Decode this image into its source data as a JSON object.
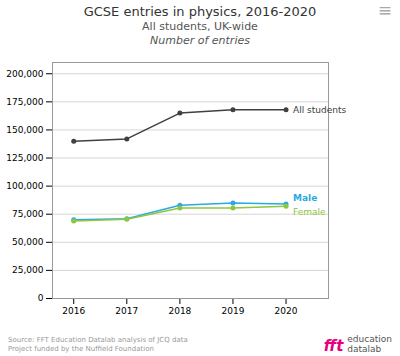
{
  "chart_data": {
    "type": "line",
    "title": "GCSE entries in physics, 2016-2020",
    "subtitle": [
      "All students, UK-wide",
      "Number of entries"
    ],
    "x": [
      2016,
      2017,
      2018,
      2019,
      2020
    ],
    "series": [
      {
        "name": "All students",
        "color": "#404040",
        "values": [
          140000,
          142000,
          165000,
          168000,
          168000
        ]
      },
      {
        "name": "Male",
        "color": "#29ABE2",
        "values": [
          70000,
          71000,
          83000,
          85000,
          84000
        ]
      },
      {
        "name": "Female",
        "color": "#8DC63F",
        "values": [
          69000,
          70500,
          80500,
          80500,
          82000
        ]
      }
    ],
    "marker": "circle",
    "xlim": [
      2015.6,
      2020.8
    ],
    "xticks": [
      2016,
      2017,
      2018,
      2019,
      2020
    ],
    "ylim": [
      0,
      210000
    ],
    "yticks": [
      0,
      {
        "value": 25000,
        "label": "25,000"
      },
      {
        "value": 50000,
        "label": "50,000"
      },
      {
        "value": 75000,
        "label": "75,000"
      },
      {
        "value": 100000,
        "label": "100,000"
      },
      {
        "value": 125000,
        "label": "125,000"
      },
      {
        "value": 150000,
        "label": "150,000"
      },
      {
        "value": 175000,
        "label": "175,000"
      },
      {
        "value": 200000,
        "label": "200,000"
      }
    ],
    "grid": true,
    "annotations": [
      "≡",
      "Source: FFT Education Datalab analysis of JCQ data",
      "Project funded by the Nuffield Foundation",
      "fft",
      "education",
      "datalab"
    ]
  }
}
